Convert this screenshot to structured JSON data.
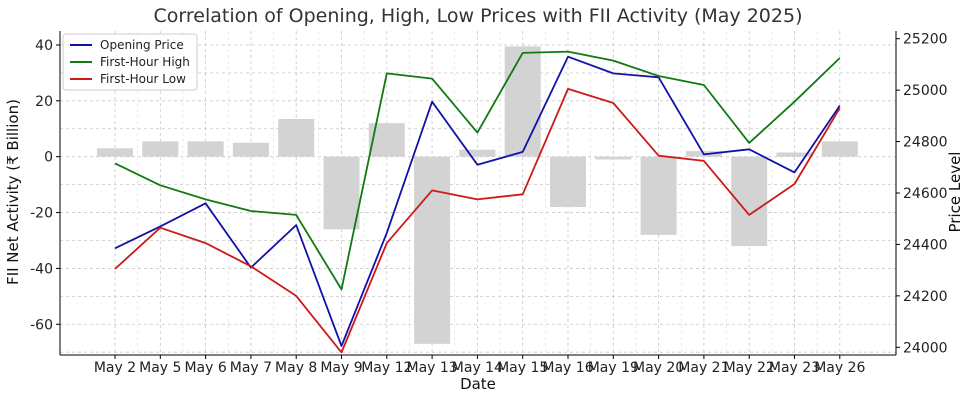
{
  "chart_data": {
    "type": "bar+line",
    "title": "Correlation of Opening, High, Low Prices with FII Activity (May 2025)",
    "xlabel": "Date",
    "ylabel_left": "FII Net Activity (₹ Billion)",
    "ylabel_right": "Price Level",
    "categories": [
      "May 2",
      "May 5",
      "May 6",
      "May 7",
      "May 8",
      "May 9",
      "May 12",
      "May 13",
      "May 14",
      "May 15",
      "May 16",
      "May 19",
      "May 20",
      "May 21",
      "May 22",
      "May 23",
      "May 26"
    ],
    "left_axis": {
      "ylim": [
        -71,
        45
      ],
      "ticks": [
        40,
        20,
        0,
        -20,
        -40,
        -60
      ]
    },
    "right_axis": {
      "ylim": [
        23970,
        25230
      ],
      "ticks": [
        25200,
        25000,
        24800,
        24600,
        24400,
        24200,
        24000
      ]
    },
    "bars": {
      "name": "FII Net Activity",
      "color": "#d3d3d3",
      "values": [
        3,
        5.5,
        5.5,
        5,
        13.5,
        -26,
        12,
        -67,
        2.5,
        39.5,
        -18,
        -1,
        -28,
        2,
        -32,
        1.5,
        5.5
      ]
    },
    "series": [
      {
        "name": "Opening Price",
        "color": "#1212a8",
        "values": [
          24385,
          24470,
          24560,
          24310,
          24475,
          24005,
          24445,
          24955,
          24710,
          24760,
          25130,
          25065,
          25050,
          24750,
          24770,
          24680,
          24940
        ]
      },
      {
        "name": "First-Hour High",
        "color": "#117a11",
        "values": [
          24715,
          24630,
          24575,
          24530,
          24515,
          24225,
          25065,
          25045,
          24835,
          25145,
          25150,
          25115,
          25055,
          25020,
          24795,
          24955,
          25125
        ]
      },
      {
        "name": "First-Hour Low",
        "color": "#cc1a1a",
        "values": [
          24305,
          24465,
          24405,
          24315,
          24200,
          23980,
          24405,
          24610,
          24575,
          24595,
          25005,
          24950,
          24745,
          24725,
          24515,
          24635,
          24930
        ]
      }
    ],
    "legend_position": "top-left",
    "grid": true
  }
}
